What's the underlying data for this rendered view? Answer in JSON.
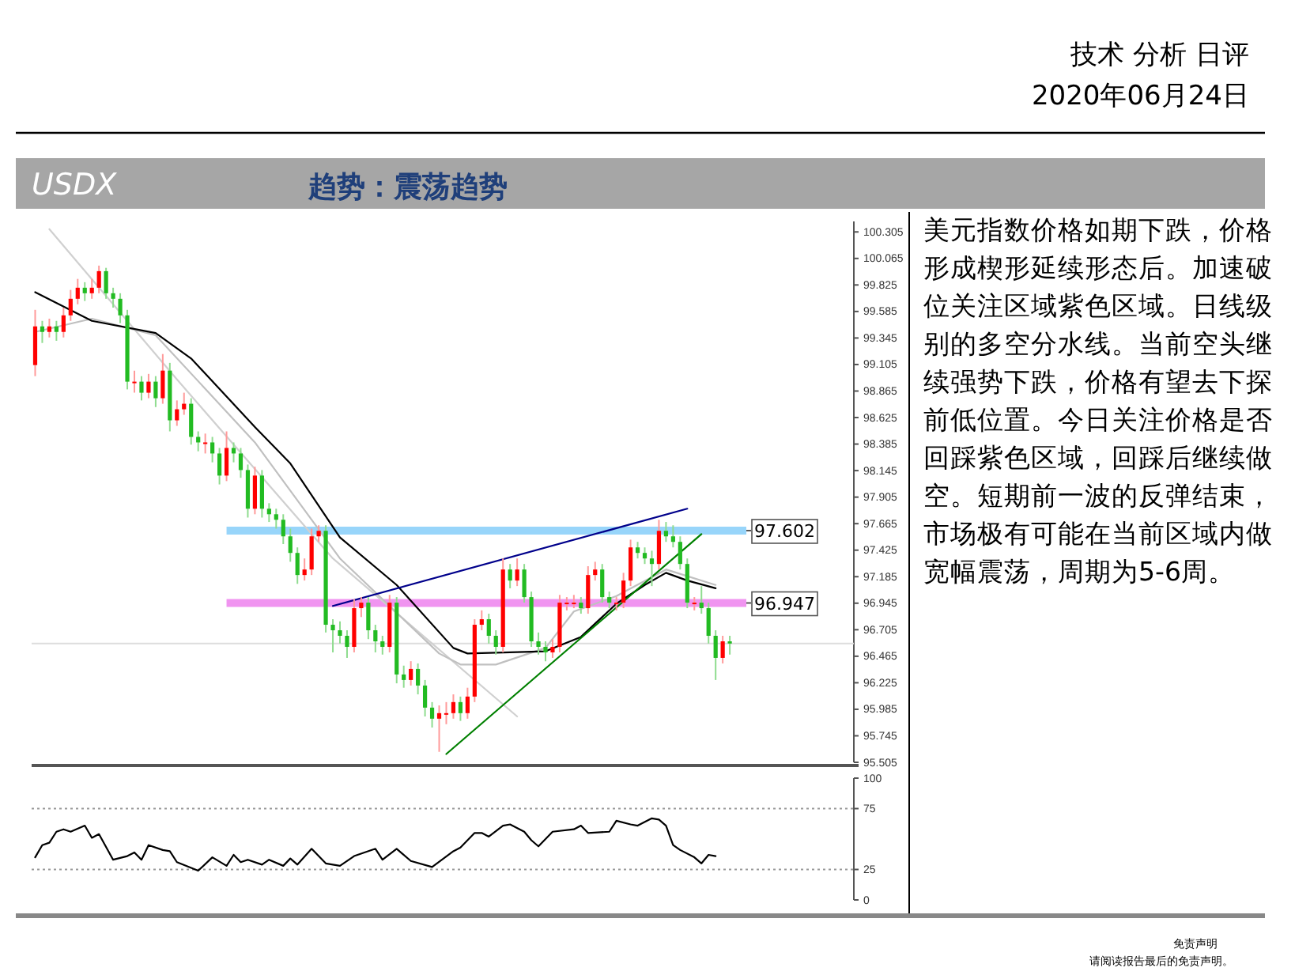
{
  "chart_data": [
    {
      "type": "candlestick",
      "title": "USDX",
      "subtitle": "趋势：震荡趋势",
      "tick_labels": "y",
      "categories": [
        null,
        null,
        null,
        null,
        null,
        null,
        null,
        null,
        null,
        null,
        null,
        null,
        null,
        null,
        null,
        null,
        null,
        null,
        null,
        null,
        null,
        null,
        null,
        null,
        null,
        null,
        null,
        null,
        null,
        null,
        null,
        null,
        null,
        null,
        null,
        null,
        null,
        null,
        null,
        null,
        null,
        null,
        null,
        null,
        null,
        null,
        null,
        null,
        null,
        null,
        null,
        null,
        null,
        null,
        null,
        null,
        null,
        null,
        null,
        null,
        null,
        null,
        null,
        null,
        null,
        null,
        null,
        null,
        null,
        null,
        null,
        null,
        null,
        null,
        null,
        null,
        null,
        null,
        null,
        null,
        null,
        null,
        null,
        null,
        null,
        null,
        null,
        null,
        null,
        null,
        null,
        null,
        null,
        null,
        null,
        null,
        null,
        null,
        null,
        null,
        null,
        null,
        null,
        null,
        null,
        null,
        null,
        null,
        null,
        null,
        null,
        null,
        null,
        null,
        null,
        null
      ],
      "ohlc": [
        [
          99.1,
          99.6,
          99.0,
          99.45
        ],
        [
          99.45,
          99.5,
          99.3,
          99.4
        ],
        [
          99.4,
          99.52,
          99.35,
          99.45
        ],
        [
          99.45,
          99.5,
          99.32,
          99.4
        ],
        [
          99.4,
          99.62,
          99.35,
          99.55
        ],
        [
          99.55,
          99.78,
          99.5,
          99.7
        ],
        [
          99.7,
          99.88,
          99.65,
          99.8
        ],
        [
          99.8,
          99.85,
          99.68,
          99.75
        ],
        [
          99.75,
          99.88,
          99.7,
          99.8
        ],
        [
          99.8,
          100.0,
          99.75,
          99.95
        ],
        [
          99.95,
          99.98,
          99.7,
          99.75
        ],
        [
          99.75,
          99.8,
          99.62,
          99.7
        ],
        [
          99.7,
          99.75,
          99.48,
          99.55
        ],
        [
          99.55,
          99.6,
          98.88,
          98.95
        ],
        [
          98.95,
          99.05,
          98.85,
          98.95
        ],
        [
          98.95,
          99.0,
          98.78,
          98.85
        ],
        [
          98.85,
          99.02,
          98.8,
          98.95
        ],
        [
          98.95,
          99.0,
          98.72,
          98.8
        ],
        [
          98.8,
          99.2,
          98.75,
          99.05
        ],
        [
          99.05,
          99.12,
          98.5,
          98.6
        ],
        [
          98.6,
          98.78,
          98.55,
          98.7
        ],
        [
          98.7,
          98.85,
          98.65,
          98.75
        ],
        [
          98.75,
          98.8,
          98.38,
          98.45
        ],
        [
          98.45,
          98.5,
          98.32,
          98.4
        ],
        [
          98.4,
          98.48,
          98.3,
          98.4
        ],
        [
          98.4,
          98.45,
          98.22,
          98.3
        ],
        [
          98.3,
          98.35,
          98.02,
          98.1
        ],
        [
          98.1,
          98.5,
          98.05,
          98.35
        ],
        [
          98.35,
          98.4,
          98.22,
          98.3
        ],
        [
          98.3,
          98.35,
          98.08,
          98.15
        ],
        [
          98.15,
          98.2,
          97.72,
          97.8
        ],
        [
          97.8,
          98.18,
          97.75,
          98.1
        ],
        [
          98.1,
          98.15,
          97.72,
          97.8
        ],
        [
          97.8,
          97.85,
          97.68,
          97.75
        ],
        [
          97.75,
          97.8,
          97.62,
          97.7
        ],
        [
          97.7,
          97.75,
          97.48,
          97.55
        ],
        [
          97.55,
          97.62,
          97.32,
          97.4
        ],
        [
          97.4,
          97.45,
          97.12,
          97.2
        ],
        [
          97.2,
          97.35,
          97.15,
          97.25
        ],
        [
          97.25,
          97.62,
          97.2,
          97.55
        ],
        [
          97.55,
          97.65,
          97.5,
          97.6
        ],
        [
          97.6,
          97.65,
          96.68,
          96.75
        ],
        [
          96.75,
          96.8,
          96.5,
          96.7
        ],
        [
          96.7,
          96.78,
          96.58,
          96.65
        ],
        [
          96.65,
          96.7,
          96.45,
          96.55
        ],
        [
          96.55,
          96.98,
          96.5,
          96.9
        ],
        [
          96.9,
          97.0,
          96.82,
          96.95
        ],
        [
          96.95,
          97.0,
          96.62,
          96.7
        ],
        [
          96.7,
          96.75,
          96.5,
          96.6
        ],
        [
          96.6,
          96.65,
          96.48,
          96.55
        ],
        [
          96.55,
          97.02,
          96.5,
          96.95
        ],
        [
          96.95,
          97.0,
          96.22,
          96.3
        ],
        [
          96.3,
          96.38,
          96.18,
          96.25
        ],
        [
          96.25,
          96.42,
          96.2,
          96.35
        ],
        [
          96.35,
          96.4,
          96.12,
          96.2
        ],
        [
          96.2,
          96.25,
          95.92,
          96.0
        ],
        [
          96.0,
          96.05,
          95.82,
          95.9
        ],
        [
          95.9,
          96.02,
          95.6,
          95.95
        ],
        [
          95.95,
          96.05,
          95.85,
          95.95
        ],
        [
          95.95,
          96.12,
          95.9,
          96.05
        ],
        [
          96.05,
          96.1,
          95.88,
          95.95
        ],
        [
          95.95,
          96.18,
          95.9,
          96.1
        ],
        [
          96.1,
          96.8,
          96.05,
          96.75
        ],
        [
          96.75,
          96.88,
          96.7,
          96.8
        ],
        [
          96.8,
          96.85,
          96.58,
          96.65
        ],
        [
          96.65,
          96.7,
          96.48,
          96.55
        ],
        [
          96.55,
          97.35,
          96.5,
          97.25
        ],
        [
          97.25,
          97.3,
          97.08,
          97.15
        ],
        [
          97.15,
          97.35,
          97.1,
          97.25
        ],
        [
          97.25,
          97.3,
          96.95,
          97.0
        ],
        [
          97.0,
          97.05,
          96.55,
          96.6
        ],
        [
          96.6,
          96.68,
          96.48,
          96.55
        ],
        [
          96.55,
          96.6,
          96.42,
          96.5
        ],
        [
          96.5,
          96.62,
          96.45,
          96.55
        ],
        [
          96.55,
          97.02,
          96.5,
          96.95
        ],
        [
          96.95,
          97.0,
          96.88,
          96.95
        ],
        [
          96.95,
          97.02,
          96.9,
          96.95
        ],
        [
          96.95,
          97.0,
          96.85,
          96.9
        ],
        [
          96.9,
          97.28,
          96.85,
          97.2
        ],
        [
          97.2,
          97.32,
          97.15,
          97.25
        ],
        [
          97.25,
          97.3,
          96.95,
          97.0
        ],
        [
          97.0,
          97.05,
          96.9,
          96.95
        ],
        [
          96.95,
          97.0,
          96.88,
          96.95
        ],
        [
          96.95,
          97.22,
          96.9,
          97.15
        ],
        [
          97.15,
          97.52,
          97.1,
          97.45
        ],
        [
          97.45,
          97.5,
          97.35,
          97.4
        ],
        [
          97.4,
          97.45,
          97.3,
          97.35
        ],
        [
          97.35,
          97.42,
          97.1,
          97.3
        ],
        [
          97.3,
          97.7,
          97.25,
          97.6
        ],
        [
          97.6,
          97.68,
          97.5,
          97.55
        ],
        [
          97.55,
          97.65,
          97.45,
          97.5
        ],
        [
          97.5,
          97.55,
          97.25,
          97.3
        ],
        [
          97.3,
          97.35,
          96.9,
          96.95
        ],
        [
          96.95,
          97.0,
          96.88,
          96.95
        ],
        [
          96.95,
          97.1,
          96.85,
          96.9
        ],
        [
          96.9,
          96.95,
          96.58,
          96.65
        ],
        [
          96.65,
          96.7,
          96.25,
          96.45
        ],
        [
          96.45,
          96.65,
          96.4,
          96.6
        ],
        [
          96.6,
          96.65,
          96.48,
          96.58
        ],
        null,
        null,
        null,
        null,
        null,
        null,
        null,
        null,
        null,
        null,
        null,
        null,
        null,
        null,
        null,
        null,
        null
      ],
      "series": [
        {
          "type": "line",
          "color": "#d0d0d0",
          "values": [
            null,
            null,
            100.33,
            null,
            null,
            null,
            null,
            null,
            null,
            null,
            null,
            null,
            null,
            null,
            null,
            null,
            null,
            null,
            null,
            null,
            98.97,
            null,
            null,
            null,
            null,
            null,
            null,
            null,
            null,
            null,
            null,
            null,
            null,
            null,
            null,
            null,
            null,
            null,
            null,
            null,
            null,
            null,
            97.35,
            null,
            null,
            null,
            null,
            null,
            null,
            null,
            null,
            null,
            null,
            null,
            null,
            null,
            null,
            null,
            null,
            null,
            null,
            null,
            null,
            null,
            null,
            null,
            null,
            null,
            95.92,
            null,
            null,
            null,
            null,
            null,
            null,
            null,
            null,
            null,
            null,
            null,
            null,
            null,
            null,
            null,
            null,
            null,
            null,
            null,
            null,
            null,
            null,
            null,
            null,
            null,
            null,
            null,
            null,
            null,
            null,
            null,
            null,
            null,
            null,
            null,
            null,
            null,
            null,
            null,
            null,
            null,
            null,
            null,
            null,
            null,
            null,
            null
          ]
        },
        {
          "type": "line",
          "color": "#c0c0c0",
          "values": [
            99.4,
            null,
            null,
            null,
            null,
            null,
            null,
            null,
            99.52,
            null,
            null,
            null,
            null,
            null,
            null,
            null,
            null,
            99.37,
            null,
            null,
            null,
            null,
            null,
            null,
            null,
            null,
            null,
            null,
            null,
            null,
            null,
            98.4,
            null,
            null,
            null,
            null,
            null,
            null,
            null,
            null,
            null,
            null,
            null,
            97.35,
            null,
            null,
            null,
            null,
            null,
            null,
            null,
            null,
            null,
            null,
            null,
            null,
            null,
            96.49,
            null,
            null,
            96.39,
            null,
            null,
            null,
            null,
            96.39,
            null,
            null,
            null,
            null,
            null,
            null,
            96.54,
            null,
            null,
            null,
            96.87,
            null,
            null,
            null,
            null,
            null,
            97.01,
            null,
            null,
            null,
            null,
            null,
            null,
            97.25,
            null,
            null,
            null,
            null,
            null,
            null,
            97.11,
            null,
            null,
            null,
            null,
            null,
            null,
            null,
            null,
            null,
            null,
            null,
            null,
            null,
            null,
            null,
            null,
            null,
            null,
            null
          ]
        },
        {
          "type": "line",
          "color": "#000000",
          "values": [
            99.76,
            null,
            null,
            null,
            null,
            null,
            null,
            null,
            99.5,
            null,
            null,
            null,
            null,
            null,
            null,
            null,
            null,
            99.39,
            null,
            null,
            null,
            null,
            99.16,
            null,
            null,
            null,
            null,
            null,
            null,
            null,
            null,
            98.54,
            null,
            null,
            null,
            null,
            98.21,
            null,
            null,
            null,
            null,
            null,
            null,
            97.54,
            null,
            null,
            null,
            null,
            null,
            null,
            null,
            97.11,
            null,
            null,
            null,
            null,
            null,
            null,
            null,
            96.54,
            null,
            96.49,
            null,
            null,
            null,
            null,
            null,
            null,
            null,
            null,
            null,
            null,
            96.51,
            null,
            null,
            null,
            null,
            96.64,
            null,
            null,
            null,
            null,
            96.94,
            null,
            null,
            null,
            97.11,
            null,
            null,
            97.22,
            null,
            null,
            97.15,
            null,
            null,
            null,
            97.08,
            null,
            null,
            null,
            null,
            null,
            null,
            null,
            null,
            null,
            null,
            null,
            null,
            null,
            null,
            null,
            null,
            null,
            null,
            null
          ]
        },
        {
          "type": "line",
          "color": "#00008b",
          "values": [
            null,
            null,
            null,
            null,
            null,
            null,
            null,
            null,
            null,
            null,
            null,
            null,
            null,
            null,
            null,
            null,
            null,
            null,
            null,
            null,
            null,
            null,
            null,
            null,
            null,
            null,
            null,
            null,
            null,
            null,
            null,
            null,
            null,
            null,
            null,
            null,
            null,
            null,
            null,
            null,
            null,
            null,
            96.92,
            null,
            null,
            null,
            null,
            null,
            null,
            null,
            null,
            null,
            null,
            null,
            null,
            null,
            null,
            null,
            null,
            null,
            null,
            null,
            null,
            null,
            null,
            null,
            null,
            null,
            null,
            null,
            null,
            null,
            null,
            null,
            null,
            null,
            null,
            null,
            null,
            null,
            null,
            null,
            null,
            null,
            null,
            null,
            null,
            null,
            null,
            null,
            null,
            null,
            97.8,
            null,
            null,
            null,
            null,
            null,
            null,
            null,
            null,
            null,
            null,
            null,
            null,
            null,
            null,
            null,
            null,
            null,
            null,
            null,
            null,
            null,
            null,
            null
          ]
        },
        {
          "type": "line",
          "color": "#008000",
          "values": [
            null,
            null,
            null,
            null,
            null,
            null,
            null,
            null,
            null,
            null,
            null,
            null,
            null,
            null,
            null,
            null,
            null,
            null,
            null,
            null,
            null,
            null,
            null,
            null,
            null,
            null,
            null,
            null,
            null,
            null,
            null,
            null,
            null,
            null,
            null,
            null,
            null,
            null,
            null,
            null,
            null,
            null,
            null,
            null,
            null,
            null,
            null,
            null,
            null,
            null,
            null,
            null,
            null,
            null,
            null,
            null,
            null,
            null,
            95.58,
            null,
            null,
            null,
            null,
            null,
            null,
            null,
            null,
            null,
            null,
            null,
            null,
            null,
            null,
            null,
            null,
            null,
            null,
            null,
            null,
            null,
            null,
            null,
            null,
            null,
            null,
            null,
            null,
            null,
            null,
            null,
            null,
            null,
            null,
            null,
            97.57,
            null,
            null,
            null,
            null,
            null,
            null,
            null,
            null,
            null,
            null,
            null,
            null,
            null,
            null,
            null,
            null,
            null,
            null,
            null,
            null,
            null
          ]
        }
      ],
      "ylim": [
        95.505,
        100.4
      ],
      "yticks": [
        {
          "value": 95.505,
          "label": "95.505"
        },
        {
          "value": 95.745,
          "label": "95.745"
        },
        {
          "value": 95.985,
          "label": "95.985"
        },
        {
          "value": 96.225,
          "label": "96.225"
        },
        {
          "value": 96.465,
          "label": "96.465"
        },
        {
          "value": 96.705,
          "label": "96.705"
        },
        {
          "value": 96.945,
          "label": "96.945"
        },
        {
          "value": 97.185,
          "label": "97.185"
        },
        {
          "value": 97.425,
          "label": "97.425"
        },
        {
          "value": 97.665,
          "label": "97.665"
        },
        {
          "value": 97.905,
          "label": "97.905"
        },
        {
          "value": 98.145,
          "label": "98.145"
        },
        {
          "value": 98.385,
          "label": "98.385"
        },
        {
          "value": 98.625,
          "label": "98.625"
        },
        {
          "value": 98.865,
          "label": "98.865"
        },
        {
          "value": 99.105,
          "label": "99.105"
        },
        {
          "value": 99.345,
          "label": "99.345"
        },
        {
          "value": 99.585,
          "label": "99.585"
        },
        {
          "value": 99.825,
          "label": "99.825"
        },
        {
          "value": 100.065,
          "label": "100.065"
        },
        {
          "value": 100.305,
          "label": "100.305"
        }
      ],
      "ref_lines": [
        {
          "axis": "y",
          "value": 96.58,
          "color": "#dddddd"
        },
        {
          "axis": "y",
          "value": 97.602,
          "label": "97.602",
          "color": "#87cefa"
        },
        {
          "axis": "y",
          "value": 96.947,
          "label": "96.947",
          "color": "#ee82ee"
        }
      ]
    },
    {
      "type": "line",
      "tick_labels": "y",
      "color": "#000000",
      "categories": [
        null,
        null,
        null,
        null,
        null,
        null,
        null,
        null,
        null,
        null,
        null,
        null,
        null,
        null,
        null,
        null,
        null,
        null,
        null,
        null,
        null,
        null,
        null,
        null,
        null,
        null,
        null,
        null,
        null,
        null,
        null,
        null,
        null,
        null,
        null,
        null,
        null,
        null,
        null,
        null,
        null,
        null,
        null,
        null,
        null,
        null,
        null,
        null,
        null,
        null,
        null,
        null,
        null,
        null,
        null,
        null,
        null,
        null,
        null,
        null,
        null,
        null,
        null,
        null,
        null,
        null,
        null,
        null,
        null,
        null,
        null,
        null,
        null,
        null,
        null,
        null,
        null,
        null,
        null,
        null,
        null,
        null,
        null,
        null,
        null,
        null,
        null,
        null,
        null,
        null,
        null,
        null,
        null,
        null,
        null,
        null,
        null,
        null,
        null,
        null,
        null,
        null,
        null,
        null,
        null,
        null,
        null,
        null,
        null,
        null,
        null,
        null,
        null,
        null,
        null,
        null
      ],
      "values": [
        35,
        45,
        47,
        56,
        58,
        56,
        null,
        61,
        51,
        54,
        null,
        33,
        null,
        36,
        39,
        33,
        45,
        null,
        41,
        40,
        31,
        null,
        null,
        24,
        null,
        35,
        null,
        28,
        37,
        31,
        33,
        null,
        29,
        33,
        null,
        28,
        34,
        29,
        null,
        42,
        null,
        30,
        null,
        28,
        null,
        36,
        null,
        null,
        42,
        33,
        null,
        42,
        null,
        32,
        null,
        null,
        27,
        null,
        null,
        40,
        43,
        null,
        55,
        55,
        52,
        null,
        61,
        62,
        null,
        56,
        49,
        44,
        null,
        56,
        null,
        null,
        58,
        61,
        55,
        null,
        null,
        56,
        65,
        null,
        62,
        61,
        null,
        67,
        66,
        61,
        45,
        41,
        null,
        35,
        30,
        37,
        36,
        null,
        null,
        null,
        null,
        null,
        null,
        null,
        null,
        null,
        null,
        null,
        null,
        null,
        null,
        null,
        null,
        null,
        null,
        null
      ],
      "ylim": [
        0,
        100
      ],
      "yticks": [
        0,
        25,
        75,
        100
      ],
      "ref_lines": [
        {
          "axis": "y",
          "value": 25,
          "color": "#999999",
          "line_style": "dotted"
        },
        {
          "axis": "y",
          "value": 75,
          "color": "#999999",
          "line_style": "dotted"
        }
      ]
    },
    {
      "type": "other",
      "annotations": [
        "技术 分析 日评",
        "2020年06月24日",
        "美元指数价格如期下跌，价格形成楔形延续形态后。加速破位关注区域紫色区域。日线级别的多空分水线。当前空头继续强势下跌，价格有望去下探前低位置。今日关注价格是否回踩紫色区域，回踩后继续做空。短期前一波的反弹结束，市场极有可能在当前区域内做宽幅震荡，周期为5-6周。",
        "免责声明",
        "请阅读报告最后的免责声明。"
      ]
    }
  ]
}
